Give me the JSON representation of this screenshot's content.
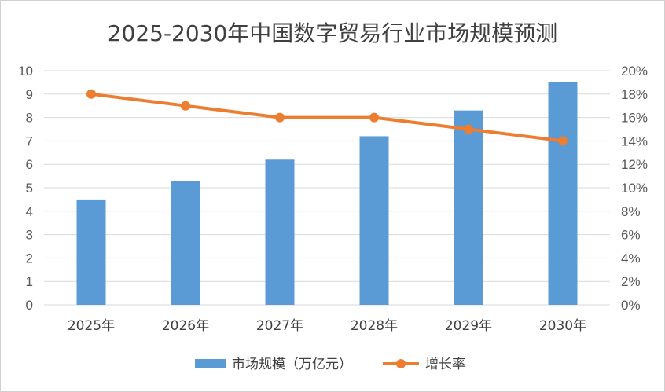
{
  "chart_data": {
    "type": "bar",
    "title": "2025-2030年中国数字贸易行业市场规模预测",
    "categories": [
      "2025年",
      "2026年",
      "2027年",
      "2028年",
      "2029年",
      "2030年"
    ],
    "series": [
      {
        "name": "市场规模（万亿元）",
        "type": "bar",
        "axis": "left",
        "color": "#5b9bd5",
        "values": [
          4.5,
          5.3,
          6.2,
          7.2,
          8.3,
          9.5
        ]
      },
      {
        "name": "增长率",
        "type": "line",
        "axis": "right",
        "color": "#ed7d31",
        "values": [
          18,
          17,
          16,
          16,
          15,
          14
        ]
      }
    ],
    "y_left": {
      "min": 0,
      "max": 10,
      "step": 1,
      "ticks": [
        "0",
        "1",
        "2",
        "3",
        "4",
        "5",
        "6",
        "7",
        "8",
        "9",
        "10"
      ]
    },
    "y_right": {
      "min": 0,
      "max": 20,
      "step": 2,
      "ticks": [
        "0%",
        "2%",
        "4%",
        "6%",
        "8%",
        "10%",
        "12%",
        "14%",
        "16%",
        "18%",
        "20%"
      ]
    },
    "grid": true,
    "legend_position": "bottom"
  }
}
